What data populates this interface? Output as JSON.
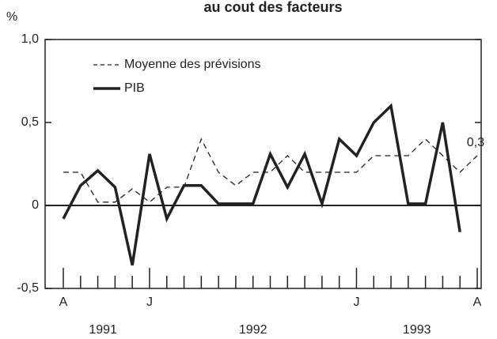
{
  "chart_data": {
    "type": "line",
    "title": "au cout des facteurs",
    "y_unit": "%",
    "categories": [
      "A",
      null,
      null,
      null,
      null,
      "J",
      null,
      null,
      null,
      null,
      null,
      null,
      null,
      null,
      null,
      null,
      null,
      "J",
      null,
      null,
      null,
      null,
      null,
      null,
      "A"
    ],
    "year_labels": [
      "1991",
      "1992",
      "1993"
    ],
    "series": [
      {
        "name": "Moyenne des prévisions",
        "color": "#222222",
        "dashed": true,
        "values": [
          0.2,
          0.2,
          0.02,
          0.02,
          0.1,
          0.02,
          0.11,
          0.11,
          0.4,
          0.2,
          0.12,
          0.2,
          0.2,
          0.3,
          0.2,
          0.2,
          0.2,
          0.2,
          0.3,
          0.3,
          0.3,
          0.4,
          0.3,
          0.2,
          0.3
        ],
        "value_labels": [
          null,
          null,
          null,
          null,
          null,
          null,
          null,
          null,
          null,
          null,
          null,
          null,
          null,
          null,
          null,
          null,
          null,
          null,
          null,
          null,
          null,
          null,
          null,
          null,
          "0,3"
        ]
      },
      {
        "name": "PIB",
        "color": "#222222",
        "dashed": false,
        "values": [
          -0.08,
          0.12,
          0.21,
          0.11,
          -0.36,
          0.31,
          -0.08,
          0.12,
          0.12,
          0.01,
          0.01,
          0.01,
          0.31,
          0.11,
          0.31,
          0.01,
          0.4,
          0.3,
          0.5,
          0.6,
          0.01,
          0.01,
          0.5,
          -0.16,
          null
        ]
      }
    ],
    "ylim": [
      -0.5,
      1.0
    ],
    "yticks": [
      {
        "value": -0.5,
        "label": "-0,5"
      },
      0,
      {
        "value": 0.5,
        "label": "0,5"
      },
      {
        "value": 1.0,
        "label": "1,0"
      }
    ],
    "zero_line": true,
    "grid": false,
    "legend": "upper left"
  }
}
